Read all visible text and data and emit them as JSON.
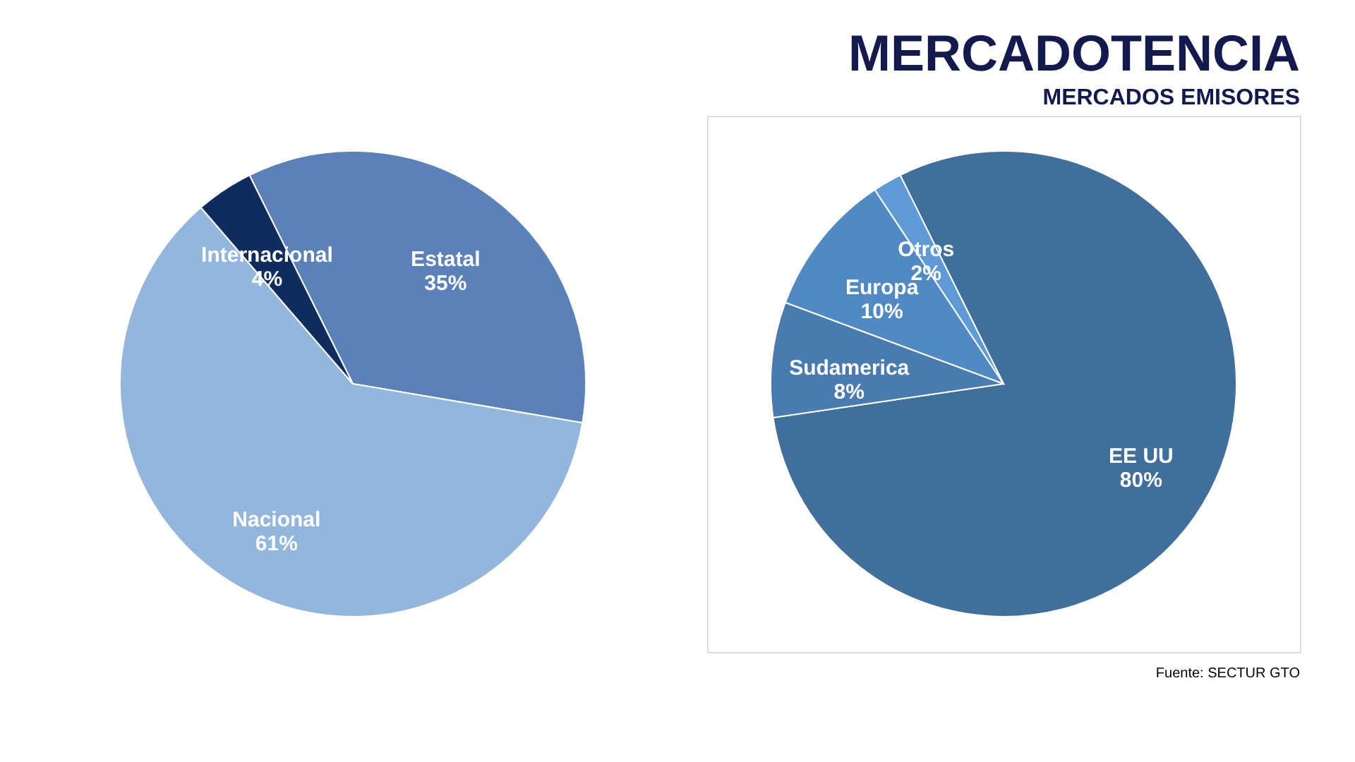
{
  "chart_data": [
    {
      "type": "pie",
      "categories": [
        "Estatal",
        "Nacional",
        "Internacional"
      ],
      "values": [
        35,
        61,
        4
      ],
      "value_labels": [
        "35%",
        "61%",
        "4%"
      ],
      "colors": [
        "#5b82b8",
        "#93b6dc",
        "#0e2d5e"
      ],
      "legend": false
    },
    {
      "type": "pie",
      "title": "MERCADOTENCIA",
      "subtitle": "MERCADOS EMISORES",
      "categories": [
        "EE UU",
        "Sudamerica",
        "Europa",
        "Otros"
      ],
      "values": [
        80,
        8,
        10,
        2
      ],
      "value_labels": [
        "80%",
        "8%",
        "10%",
        "2%"
      ],
      "colors": [
        "#416f9b",
        "#4a7bb0",
        "#5089c4",
        "#5e9ad6"
      ],
      "legend": false,
      "annotations": [
        "Fuente: SECTUR GTO"
      ]
    }
  ]
}
